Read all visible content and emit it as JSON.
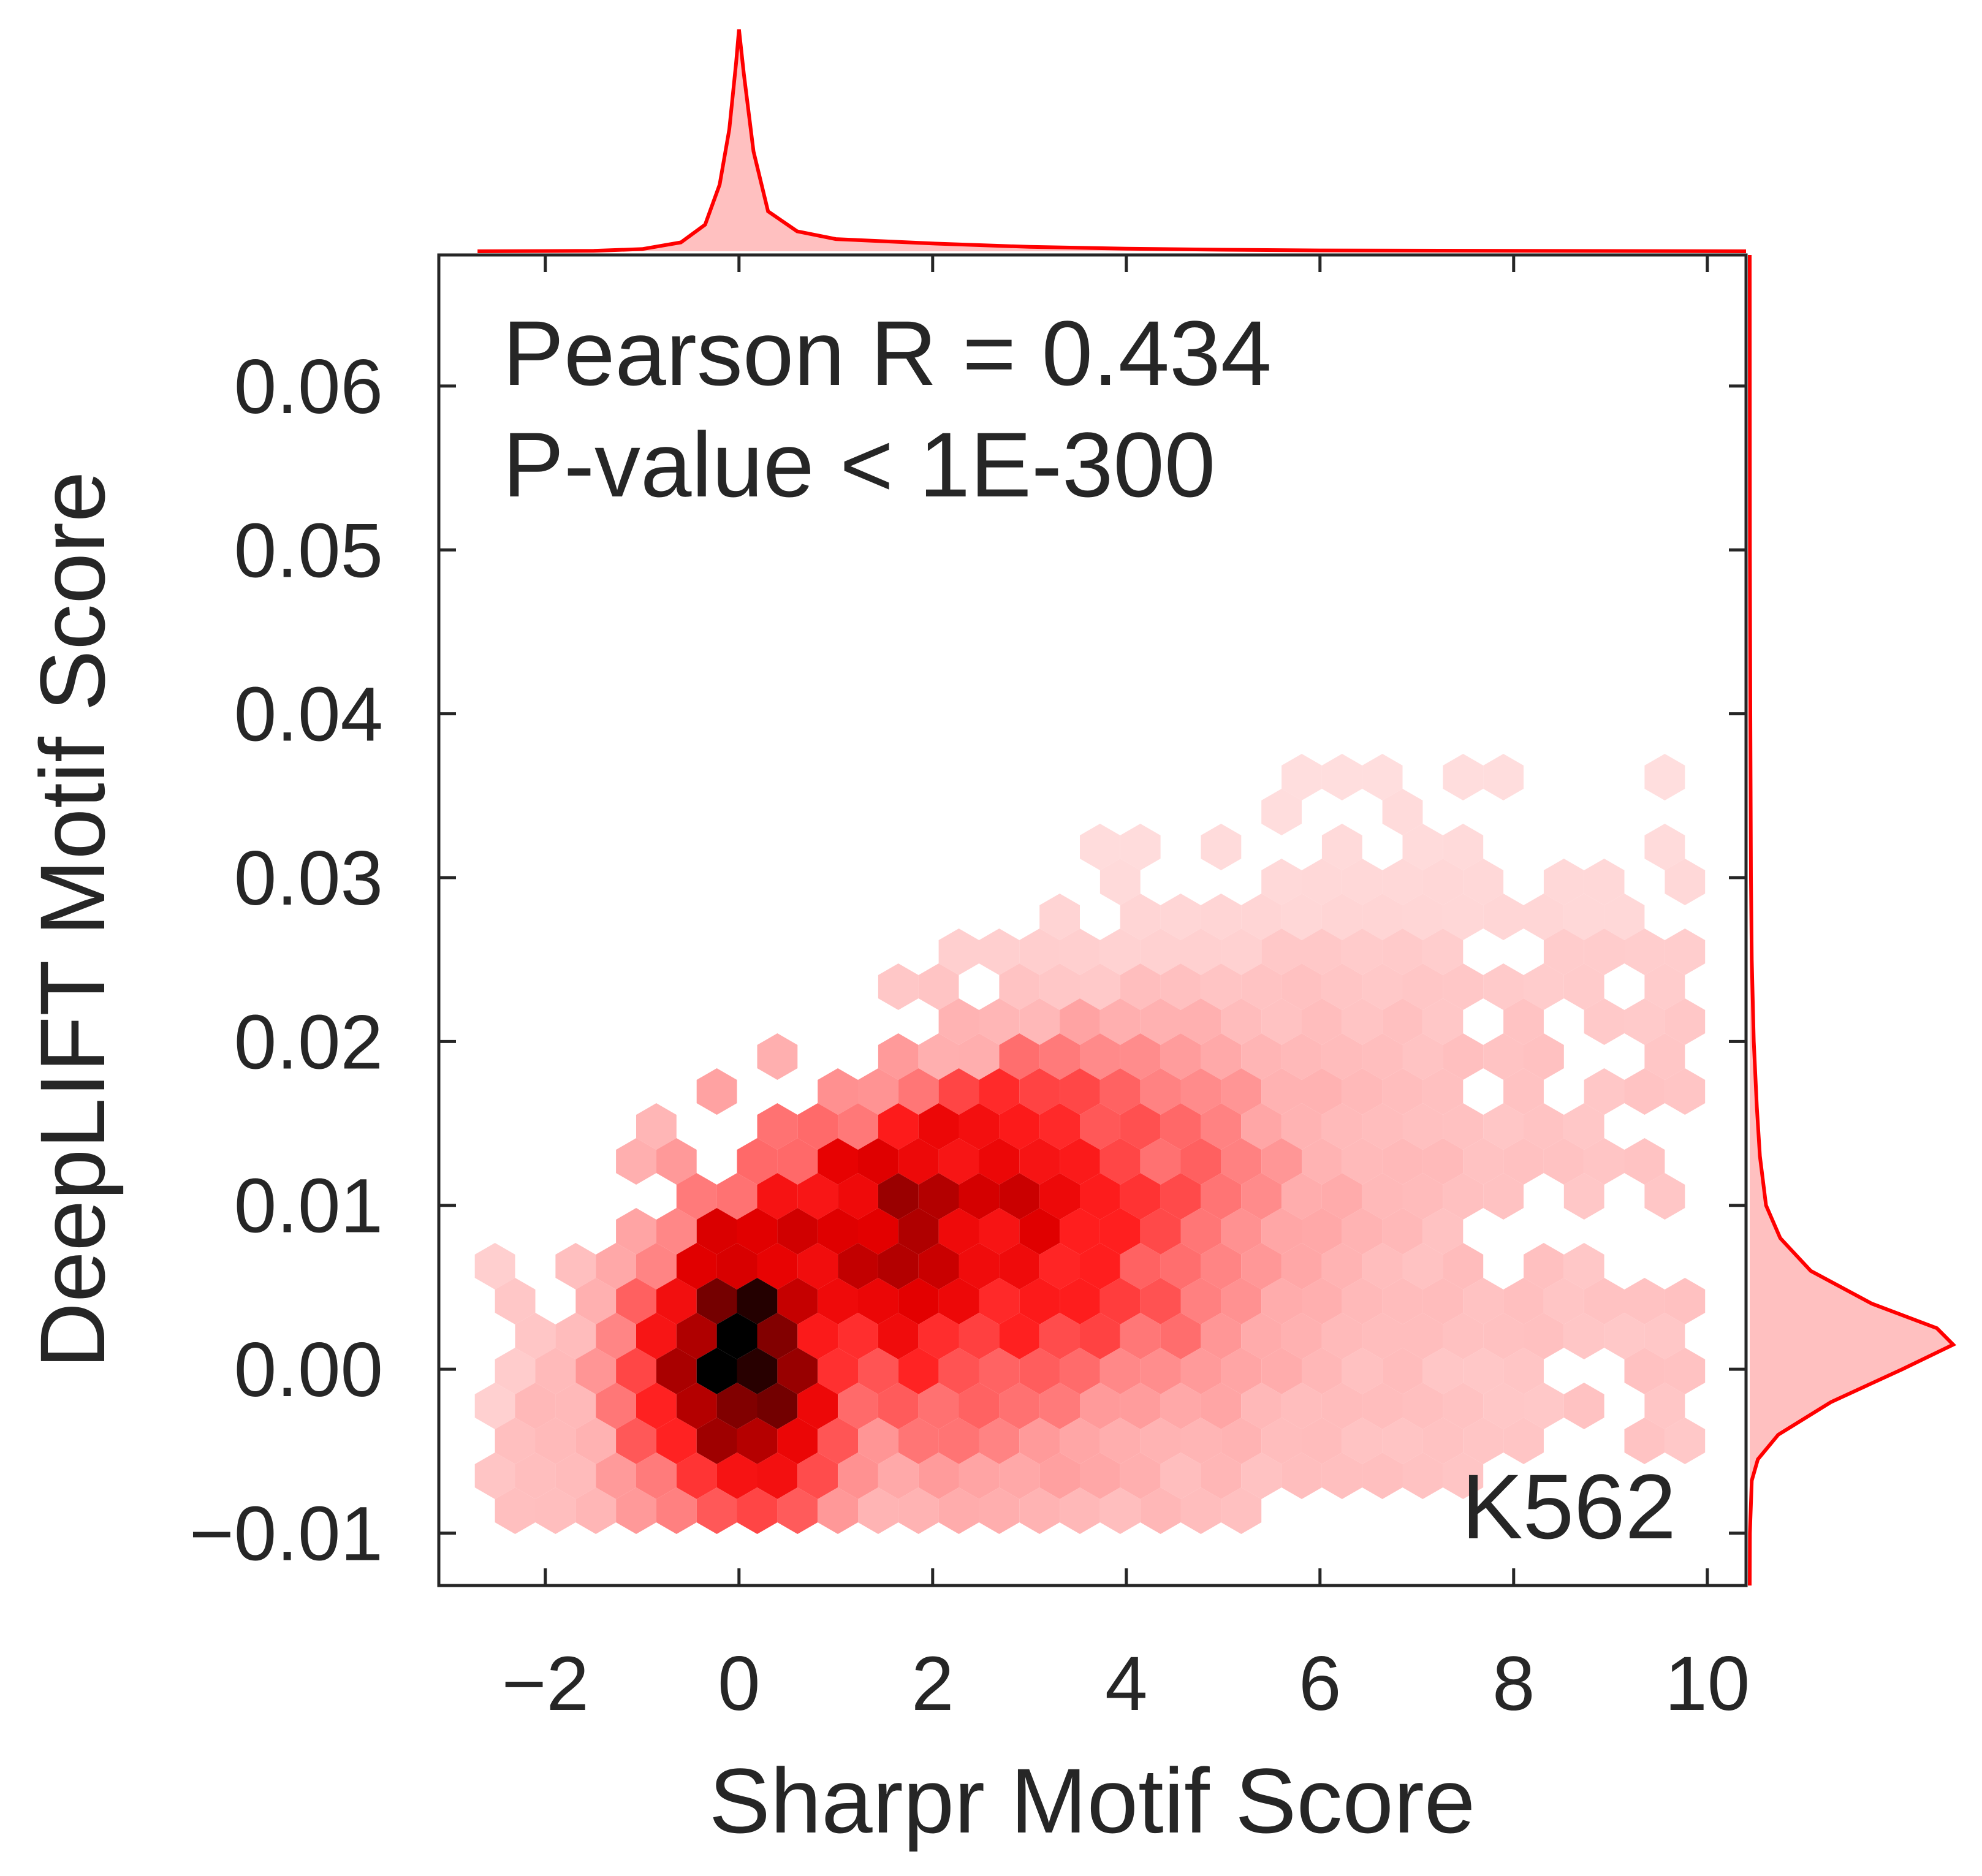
{
  "chart_data": {
    "type": "hexbin",
    "xlabel": "Sharpr Motif Score",
    "ylabel": "DeepLIFT Motif Score",
    "xlim": [
      -3.1,
      10.4
    ],
    "ylim": [
      -0.0132,
      0.068
    ],
    "x_ticks": [
      -2,
      0,
      2,
      4,
      6,
      8,
      10
    ],
    "x_tick_labels": [
      "−2",
      "0",
      "2",
      "4",
      "6",
      "8",
      "10"
    ],
    "y_ticks": [
      -0.01,
      0.0,
      0.01,
      0.02,
      0.03,
      0.04,
      0.05,
      0.06
    ],
    "y_tick_labels": [
      "−0.01",
      "0.00",
      "0.01",
      "0.02",
      "0.03",
      "0.04",
      "0.05",
      "0.06"
    ],
    "annotations": {
      "stat_line1": "Pearson R = 0.434",
      "stat_line2": "P-value < 1E-300",
      "cell_line": "K562"
    },
    "colors": {
      "accent": "#ff0000",
      "fill": "#ffc0c0",
      "dense": "#000000",
      "axis": "#262626"
    },
    "marginal_x": [
      [
        -2.7,
        0
      ],
      [
        -1.5,
        0.002
      ],
      [
        -1.0,
        0.01
      ],
      [
        -0.6,
        0.04
      ],
      [
        -0.35,
        0.12
      ],
      [
        -0.2,
        0.3
      ],
      [
        -0.1,
        0.55
      ],
      [
        -0.03,
        0.85
      ],
      [
        0,
        1
      ],
      [
        0.05,
        0.8
      ],
      [
        0.15,
        0.45
      ],
      [
        0.3,
        0.18
      ],
      [
        0.6,
        0.09
      ],
      [
        1.0,
        0.055
      ],
      [
        2.0,
        0.035
      ],
      [
        3.0,
        0.02
      ],
      [
        4.0,
        0.012
      ],
      [
        5.0,
        0.007
      ],
      [
        6.0,
        0.004
      ],
      [
        8.0,
        0.002
      ],
      [
        10.4,
        0
      ]
    ],
    "marginal_y": [
      [
        -0.0132,
        0
      ],
      [
        -0.01,
        0.001
      ],
      [
        -0.0068,
        0.01
      ],
      [
        -0.0055,
        0.04
      ],
      [
        -0.004,
        0.14
      ],
      [
        -0.002,
        0.4
      ],
      [
        0,
        0.75
      ],
      [
        0.0015,
        1
      ],
      [
        0.0025,
        0.92
      ],
      [
        0.004,
        0.6
      ],
      [
        0.006,
        0.3
      ],
      [
        0.008,
        0.15
      ],
      [
        0.01,
        0.08
      ],
      [
        0.013,
        0.05
      ],
      [
        0.016,
        0.035
      ],
      [
        0.02,
        0.02
      ],
      [
        0.025,
        0.01
      ],
      [
        0.03,
        0.006
      ],
      [
        0.04,
        0.003
      ],
      [
        0.05,
        0.001
      ],
      [
        0.068,
        0
      ]
    ],
    "hexbin_model": {
      "gridsize": 30,
      "x_center": 0.0,
      "y_center": 0.0015,
      "intensity_peak": 1.0,
      "note_visible_only": false
    }
  }
}
